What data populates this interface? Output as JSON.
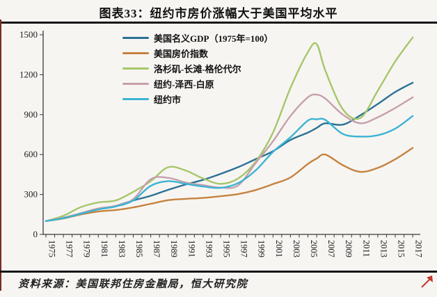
{
  "page": {
    "title": "图表33：纽约市房价涨幅大于美国平均水平",
    "source": "资料来源：美国联邦住房金融局，恒大研究院"
  },
  "chart_data": {
    "type": "line",
    "title": "图表33：纽约市房价涨幅大于美国平均水平",
    "xlabel": "",
    "ylabel": "",
    "ylim": [
      0,
      1500
    ],
    "y_ticks": [
      0,
      300,
      600,
      900,
      1200,
      1500
    ],
    "grid": false,
    "legend_position": "top-left",
    "x": [
      1975,
      1977,
      1979,
      1981,
      1983,
      1985,
      1987,
      1989,
      1991,
      1993,
      1995,
      1997,
      1999,
      2001,
      2003,
      2005,
      2006,
      2007,
      2009,
      2011,
      2013,
      2015,
      2017
    ],
    "x_tick_labels": [
      "1975",
      "1977",
      "1979",
      "1981",
      "1983",
      "1985",
      "1987",
      "1989",
      "1991",
      "1993",
      "1995",
      "1997",
      "1999",
      "2001",
      "2003",
      "2005",
      "2007",
      "2009",
      "2011",
      "2013",
      "2015",
      "2017"
    ],
    "minor_x_ticks": "yearly",
    "series": [
      {
        "name": "美国名义GDP（1975年=100）",
        "color": "#2a7195",
        "values": [
          100,
          125,
          155,
          190,
          215,
          255,
          290,
          335,
          375,
          410,
          455,
          505,
          565,
          625,
          710,
          765,
          800,
          835,
          825,
          895,
          980,
          1070,
          1140
        ]
      },
      {
        "name": "美国房价指数",
        "color": "#c5823f",
        "values": [
          100,
          120,
          150,
          172,
          183,
          203,
          230,
          257,
          267,
          274,
          287,
          303,
          333,
          378,
          428,
          530,
          570,
          600,
          520,
          470,
          500,
          565,
          650
        ]
      },
      {
        "name": "洛杉矶-长滩-格伦代尔",
        "color": "#a5c66b",
        "values": [
          100,
          140,
          205,
          240,
          255,
          320,
          400,
          505,
          480,
          420,
          380,
          420,
          545,
          765,
          1100,
          1370,
          1430,
          1230,
          940,
          875,
          1080,
          1300,
          1480
        ]
      },
      {
        "name": "纽约-泽西-白原",
        "color": "#c5a0ab",
        "values": [
          100,
          125,
          160,
          195,
          215,
          265,
          415,
          425,
          390,
          370,
          352,
          368,
          535,
          700,
          890,
          1030,
          1050,
          1020,
          900,
          835,
          880,
          950,
          1030
        ]
      },
      {
        "name": "纽约市",
        "color": "#3ab3d4",
        "values": [
          100,
          122,
          155,
          188,
          210,
          255,
          365,
          400,
          380,
          360,
          350,
          385,
          480,
          620,
          730,
          855,
          865,
          860,
          755,
          735,
          745,
          795,
          890
        ]
      }
    ]
  }
}
